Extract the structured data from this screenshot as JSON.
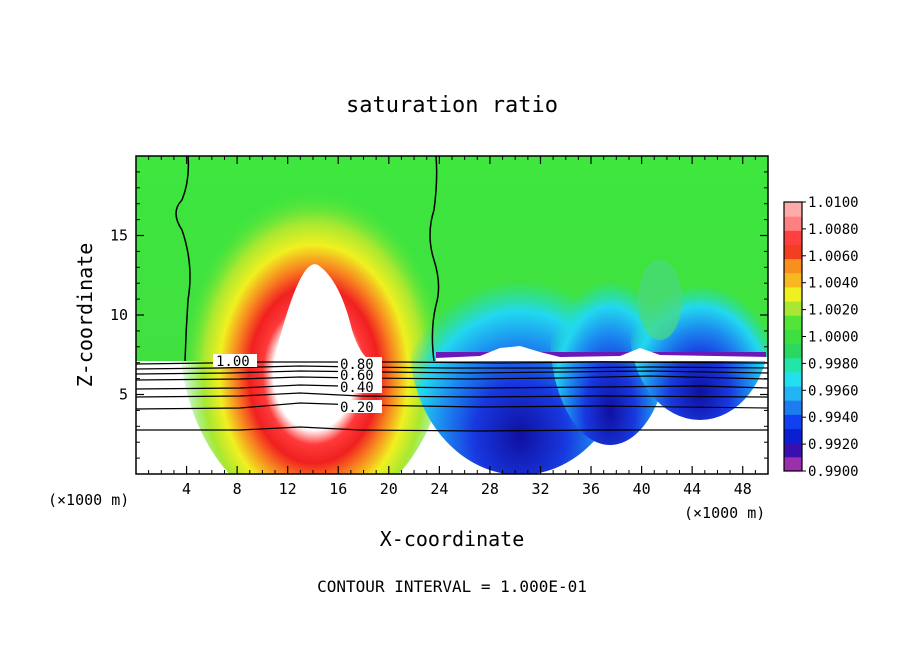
{
  "chart_data": {
    "type": "heatmap",
    "title": "saturation ratio",
    "xlabel": "X-coordinate",
    "ylabel": "Z-coordinate",
    "x_unit": "(×1000 m)",
    "x_unit_right": "(×1000 m)",
    "footer": "CONTOUR INTERVAL = 1.000E-01",
    "xlim": [
      0,
      50
    ],
    "ylim": [
      0,
      20
    ],
    "x_ticks": [
      4,
      8,
      12,
      16,
      20,
      24,
      28,
      32,
      36,
      40,
      44,
      48
    ],
    "y_ticks": [
      5,
      10,
      15
    ],
    "colorbar": {
      "min": 0.99,
      "max": 1.01,
      "labels": [
        "1.0100",
        "1.0080",
        "1.0060",
        "1.0040",
        "1.0020",
        "1.0000",
        "0.9980",
        "0.9960",
        "0.9940",
        "0.9920",
        "0.9900"
      ],
      "colors": [
        "#9b2fae",
        "#3a0fb0",
        "#0a1fd0",
        "#1040f0",
        "#1c7cf0",
        "#22b4f4",
        "#22e0f0",
        "#22e6a8",
        "#2ad860",
        "#3de040",
        "#52e436",
        "#a8e830",
        "#f0f020",
        "#f8b820",
        "#f89020",
        "#f04020",
        "#ff4040",
        "#ff8080",
        "#ffaaaa"
      ]
    },
    "contour_labels": [
      "1.00",
      "0.80",
      "0.60",
      "0.40",
      "0.20"
    ],
    "contour_label_text": "1.00"
  }
}
